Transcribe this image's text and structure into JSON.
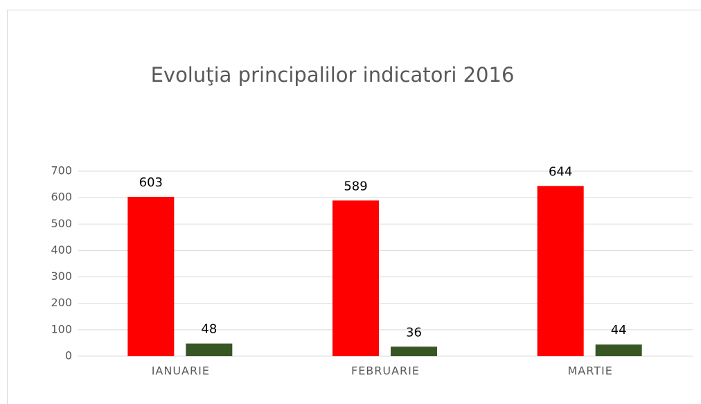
{
  "chart_data": {
    "type": "bar",
    "title": "Evoluţia principalilor indicatori 2016",
    "categories": [
      "IANUARIE",
      "FEBRUARIE",
      "MARTIE"
    ],
    "series": [
      {
        "color": "#ff0000",
        "values": [
          603,
          589,
          644
        ]
      },
      {
        "color": "#375623",
        "values": [
          48,
          36,
          44
        ]
      }
    ],
    "ylim": [
      0,
      700
    ],
    "yticks": [
      0,
      100,
      200,
      300,
      400,
      500,
      600,
      700
    ],
    "grid": true
  }
}
